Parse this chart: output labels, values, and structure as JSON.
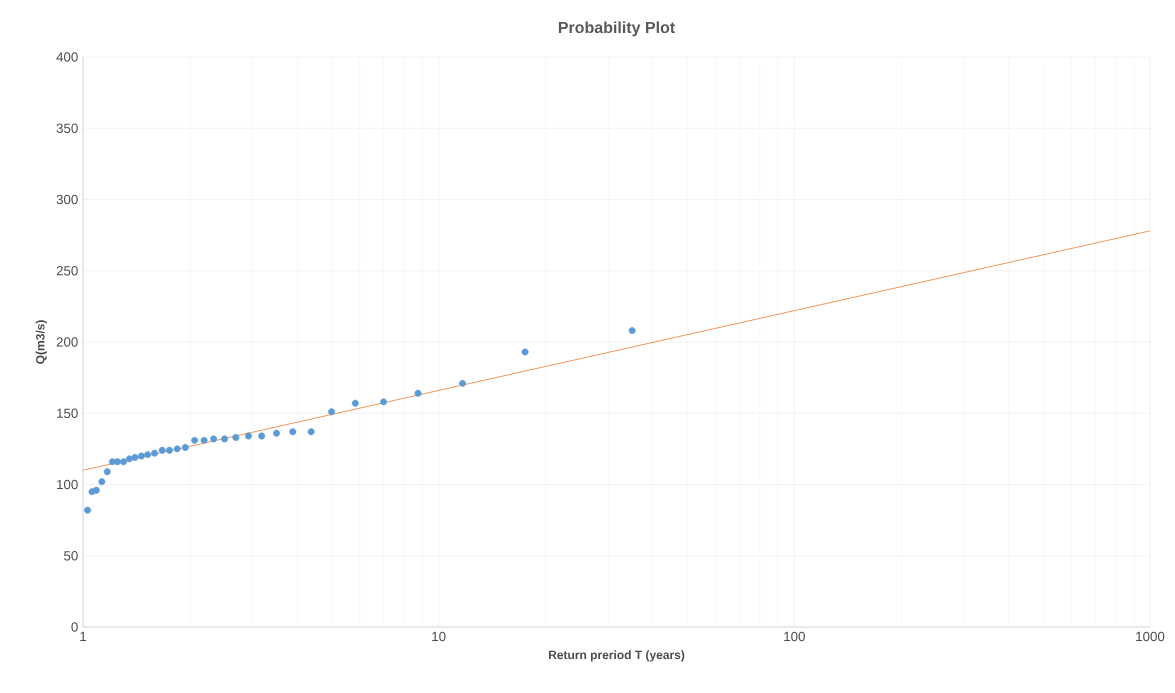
{
  "chart_data": {
    "type": "scatter",
    "title": "Probability Plot",
    "xlabel": "Return preriod T (years)",
    "ylabel": "Q(m3/s)",
    "log": "x",
    "grid": true,
    "xlim": [
      1,
      1000
    ],
    "xticks": [
      1,
      10,
      100,
      1000
    ],
    "ylim": [
      0,
      400
    ],
    "yticks": [
      0,
      50,
      100,
      150,
      200,
      250,
      300,
      350,
      400
    ],
    "series": [
      {
        "marker": "circle",
        "color": "#5b9bd5",
        "x": [
          1.03,
          1.06,
          1.09,
          1.13,
          1.17,
          1.21,
          1.25,
          1.3,
          1.35,
          1.4,
          1.46,
          1.52,
          1.59,
          1.67,
          1.75,
          1.84,
          1.94,
          2.06,
          2.19,
          2.33,
          2.5,
          2.69,
          2.92,
          3.18,
          3.5,
          3.89,
          4.38,
          5,
          5.83,
          7,
          8.75,
          11.67,
          17.5,
          35
        ],
        "values": [
          82,
          95,
          96,
          102,
          109,
          116,
          116,
          116,
          118,
          119,
          120,
          121,
          122,
          124,
          124,
          125,
          126,
          131,
          131,
          132,
          132,
          133,
          134,
          134,
          136,
          137,
          137,
          151,
          157,
          158,
          164,
          171,
          193,
          208
        ]
      },
      {
        "type": "line",
        "marker": "none",
        "color": "#ed7d31",
        "x": [
          1,
          1000
        ],
        "values": [
          110,
          278
        ]
      }
    ]
  }
}
